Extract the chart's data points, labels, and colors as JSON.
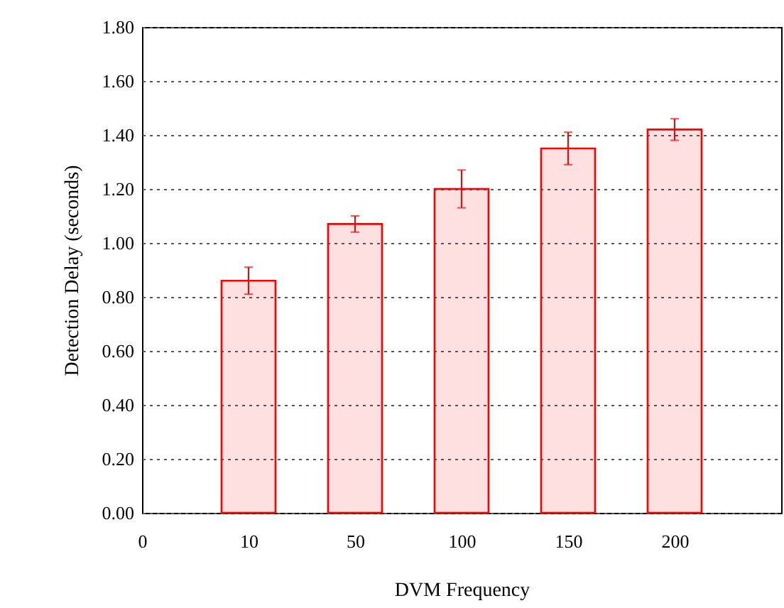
{
  "chart_data": {
    "type": "bar",
    "categories": [
      "0",
      "10",
      "50",
      "100",
      "150",
      "200",
      null
    ],
    "values": [
      null,
      0.86,
      1.07,
      1.2,
      1.35,
      1.42,
      null
    ],
    "errors": [
      null,
      0.05,
      0.03,
      0.07,
      0.06,
      0.04,
      null
    ],
    "color": "#ff0000",
    "xlabel": "DVM Frequency",
    "ylabel": "Detection Delay (seconds)",
    "ylim": [
      0,
      1.8
    ],
    "yticks": [
      {
        "value": 0,
        "label": "0.00"
      },
      {
        "value": 0.2,
        "label": "0.20"
      },
      {
        "value": 0.4,
        "label": "0.40"
      },
      {
        "value": 0.6,
        "label": "0.60"
      },
      {
        "value": 0.8,
        "label": "0.80"
      },
      {
        "value": 1.0,
        "label": "1.00"
      },
      {
        "value": 1.2,
        "label": "1.20"
      },
      {
        "value": 1.4,
        "label": "1.40"
      },
      {
        "value": 1.6,
        "label": "1.60"
      },
      {
        "value": 1.8,
        "label": "1.80"
      }
    ],
    "grid": "y"
  }
}
